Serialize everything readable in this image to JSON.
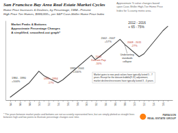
{
  "chart_data": {
    "type": "line",
    "title": "San Francisco Bay Area Real Estate Market Cycles",
    "subtitle": [
      "Home Price Increases & Declines, by Percentage, 1984 - Present",
      "High Price Tier Homes, $999,000+, per S&P Case-Shiller Home Price Index"
    ],
    "x": [
      1984,
      1988,
      1990,
      1991,
      1994,
      1995,
      2001,
      2001.8,
      2002.5,
      2007,
      2008,
      2011,
      2012,
      2016,
      2017
    ],
    "values": [
      0.02,
      0.22,
      0.38,
      0.32,
      0.22,
      0.26,
      0.6,
      0.54,
      0.57,
      0.82,
      0.75,
      0.58,
      0.62,
      0.94,
      1.0
    ],
    "color": "#444444",
    "xlim": [
      1983,
      2018
    ],
    "ylim": [
      -0.02,
      1.08
    ],
    "tick_labels": "x",
    "xticks": [
      {
        "value": 1984,
        "label": "'84"
      },
      {
        "value": 1985,
        "label": null
      },
      {
        "value": 1986,
        "label": "'86"
      },
      {
        "value": 1987,
        "label": null
      },
      {
        "value": 1988,
        "label": "'88"
      },
      {
        "value": 1989,
        "label": null
      },
      {
        "value": 1990,
        "label": "'90"
      },
      {
        "value": 1991,
        "label": null
      },
      {
        "value": 1992,
        "label": "'92"
      },
      {
        "value": 1993,
        "label": null
      },
      {
        "value": 1994,
        "label": "'94"
      },
      {
        "value": 1995,
        "label": null
      },
      {
        "value": 1996,
        "label": "'96"
      },
      {
        "value": 1997,
        "label": null
      },
      {
        "value": 1998,
        "label": "'98"
      },
      {
        "value": 1999,
        "label": null
      },
      {
        "value": 2000,
        "label": "'00"
      },
      {
        "value": 2001,
        "label": null
      },
      {
        "value": 2002,
        "label": "'02"
      },
      {
        "value": 2003,
        "label": null
      },
      {
        "value": 2004,
        "label": "'04"
      },
      {
        "value": 2005,
        "label": null
      },
      {
        "value": 2006,
        "label": "'06"
      },
      {
        "value": 2007,
        "label": null
      },
      {
        "value": 2008,
        "label": "'08"
      },
      {
        "value": 2009,
        "label": null
      },
      {
        "value": 2010,
        "label": "'10"
      },
      {
        "value": 2011,
        "label": null
      },
      {
        "value": 2012,
        "label": "'12"
      },
      {
        "value": 2013,
        "label": null
      },
      {
        "value": 2014,
        "label": "'14"
      },
      {
        "value": 2015,
        "label": null
      },
      {
        "value": 2016,
        "label": "'16"
      },
      {
        "value": 2017,
        "label": null
      }
    ],
    "annotations": [
      {
        "text": "Approximate % value changes based\nupon Case-Shiller High-Tier Home Price\nIndex for 5-county metro area."
      },
      {
        "text": "Market Peaks & Bottoms\nApproximate Percentage Changes\nA simplified, smoothed-out graph*"
      },
      {
        "text": "2012 - 2016\n+ 65 - 75%"
      },
      {
        "text": "1984 - 1990\n+100%",
        "color": "#333333"
      },
      {
        "text": "1991 - 1994\n-17%",
        "color": "#c0392b"
      },
      {
        "text": "1995 - 2001\n+100%",
        "color": "#333333"
      },
      {
        "text": "2000\nDotcom Pop\n-10%",
        "color": "#c0392b"
      },
      {
        "text": "2002 - 2007\n+57%",
        "color": "#333333"
      },
      {
        "text": "2008 - 2011\n-27%",
        "color": "#c0392b"
      },
      {
        "text": "Underwriting\nstandards\ncollapse",
        "color": "#333333"
      },
      {
        "text": "Market gains to new peak values have typically lasted 5 - 7\nyears. Except for the dotcom bubble(9-11) adjustment,\nmarket declines/recessions have typically lasted 3 - 4 years."
      },
      {
        "text": "* The years between market peaks and bottoms are not accurately represented here, but are simply plotted as straight lines between high and low points to illustrate percentage changes over time."
      },
      {
        "text": "PARAGON\nREAL ESTATE GROUP"
      }
    ]
  }
}
